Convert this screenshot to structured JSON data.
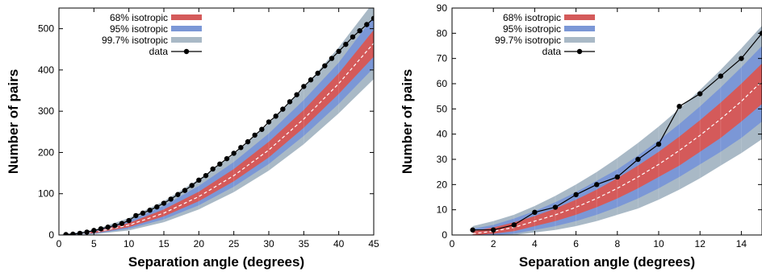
{
  "colors": {
    "band_68": "#d45a5a",
    "band_95": "#7b97d6",
    "band_997": "#a9b9c6",
    "data": "#000000",
    "median": "#ffffff"
  },
  "chart_data": [
    {
      "type": "line",
      "xlabel": "Separation angle (degrees)",
      "ylabel": "Number of pairs",
      "xlim": [
        0,
        45
      ],
      "ylim": [
        0,
        550
      ],
      "xticks": [
        0,
        5,
        10,
        15,
        20,
        25,
        30,
        35,
        40,
        45
      ],
      "yticks": [
        0,
        100,
        200,
        300,
        400,
        500
      ],
      "grid": false,
      "legend_position": "top-left",
      "legend": [
        "68% isotropic",
        "95% isotropic",
        "99.7% isotropic",
        "data"
      ],
      "bands_x": [
        0,
        5,
        10,
        15,
        20,
        25,
        30,
        35,
        40,
        45
      ],
      "median": [
        0,
        6,
        24,
        53,
        93,
        144,
        206,
        281,
        367,
        465
      ],
      "band_68": {
        "lower": [
          0,
          4,
          19,
          45,
          82,
          130,
          188,
          260,
          342,
          432
        ],
        "upper": [
          0,
          8,
          29,
          62,
          105,
          160,
          226,
          303,
          392,
          497
        ]
      },
      "band_95": {
        "lower": [
          0,
          3,
          15,
          38,
          72,
          117,
          172,
          240,
          318,
          405
        ],
        "upper": [
          0,
          10,
          35,
          71,
          119,
          177,
          246,
          327,
          418,
          530
        ]
      },
      "band_997": {
        "lower": [
          0,
          2,
          11,
          31,
          62,
          104,
          156,
          220,
          295,
          378
        ],
        "upper": [
          0,
          12,
          41,
          82,
          135,
          195,
          270,
          357,
          455,
          565
        ]
      },
      "series": [
        {
          "name": "data",
          "x": [
            1,
            2,
            3,
            4,
            5,
            6,
            7,
            8,
            9,
            10,
            11,
            12,
            13,
            14,
            15,
            16,
            17,
            18,
            19,
            20,
            21,
            22,
            23,
            24,
            25,
            26,
            27,
            28,
            29,
            30,
            31,
            32,
            33,
            34,
            35,
            36,
            37,
            38,
            39,
            40,
            41,
            42,
            43,
            44,
            45
          ],
          "y": [
            1,
            2,
            4,
            7,
            11,
            15,
            19,
            23,
            28,
            35,
            47,
            53,
            60,
            68,
            77,
            87,
            98,
            108,
            120,
            133,
            144,
            160,
            172,
            185,
            198,
            212,
            226,
            242,
            256,
            274,
            288,
            305,
            323,
            340,
            360,
            376,
            392,
            410,
            428,
            445,
            462,
            480,
            495,
            510,
            525
          ]
        }
      ]
    },
    {
      "type": "line",
      "xlabel": "Separation angle (degrees)",
      "ylabel": "Number of pairs",
      "xlim": [
        0,
        15
      ],
      "ylim": [
        0,
        90
      ],
      "xticks": [
        0,
        2,
        4,
        6,
        8,
        10,
        12,
        14
      ],
      "yticks": [
        0,
        10,
        20,
        30,
        40,
        50,
        60,
        70,
        80,
        90
      ],
      "grid": false,
      "legend_position": "top-left",
      "legend": [
        "68% isotropic",
        "95% isotropic",
        "99.7% isotropic",
        "data"
      ],
      "bands_x": [
        1,
        2,
        3,
        4,
        5,
        6,
        7,
        8,
        9,
        10,
        11,
        12,
        13,
        14,
        15
      ],
      "median": [
        0.5,
        1.5,
        3,
        5.5,
        8,
        11,
        14.5,
        18.5,
        23,
        28,
        33.5,
        39.5,
        46,
        53,
        61
      ],
      "band_68": {
        "lower": [
          0,
          0.5,
          1.5,
          3.5,
          5.5,
          8,
          11,
          14.5,
          18.5,
          23,
          27.5,
          33,
          38.5,
          45,
          52
        ],
        "upper": [
          1.5,
          3,
          5,
          7.5,
          10.5,
          14,
          18,
          22.5,
          27.5,
          33,
          39,
          45.5,
          52.5,
          60,
          68
        ]
      },
      "band_95": {
        "lower": [
          0,
          0,
          0.5,
          2,
          3.5,
          5.5,
          8,
          11,
          14.5,
          18.5,
          23,
          28,
          33,
          38.5,
          45
        ],
        "upper": [
          2.5,
          4,
          6.5,
          9.5,
          13,
          17,
          21.5,
          26,
          31.5,
          37.5,
          44,
          51,
          58.5,
          66.5,
          75
        ]
      },
      "band_997": {
        "lower": [
          0,
          0,
          0,
          1,
          2,
          3.5,
          5.5,
          8,
          10.5,
          14,
          18,
          22.5,
          27.5,
          32.5,
          38
        ],
        "upper": [
          3.5,
          5.5,
          8,
          11.5,
          15.5,
          20,
          25,
          30.5,
          36.5,
          43,
          50,
          57.5,
          65.5,
          74,
          83
        ]
      },
      "series": [
        {
          "name": "data",
          "x": [
            1,
            2,
            3,
            4,
            5,
            6,
            7,
            8,
            9,
            10,
            11,
            12,
            13,
            14,
            15
          ],
          "y": [
            2,
            2,
            4,
            9,
            11,
            16,
            20,
            23,
            30,
            36,
            51,
            56,
            63,
            70,
            80
          ]
        }
      ]
    }
  ]
}
